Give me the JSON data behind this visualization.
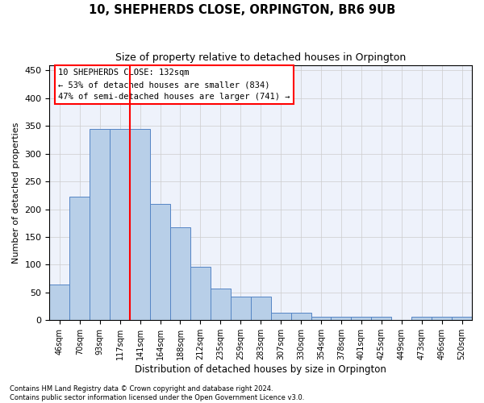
{
  "title": "10, SHEPHERDS CLOSE, ORPINGTON, BR6 9UB",
  "subtitle": "Size of property relative to detached houses in Orpington",
  "xlabel": "Distribution of detached houses by size in Orpington",
  "ylabel": "Number of detached properties",
  "categories": [
    "46sqm",
    "70sqm",
    "93sqm",
    "117sqm",
    "141sqm",
    "164sqm",
    "188sqm",
    "212sqm",
    "235sqm",
    "259sqm",
    "283sqm",
    "307sqm",
    "330sqm",
    "354sqm",
    "378sqm",
    "401sqm",
    "425sqm",
    "449sqm",
    "473sqm",
    "496sqm",
    "520sqm"
  ],
  "values": [
    65,
    222,
    345,
    345,
    345,
    209,
    167,
    97,
    57,
    43,
    43,
    13,
    13,
    7,
    7,
    6,
    6,
    0,
    6,
    6,
    6
  ],
  "bar_color": "#b8cfe8",
  "bar_edge_color": "#5585c5",
  "red_line_x": 3.5,
  "annotation_line1": "10 SHEPHERDS CLOSE: 132sqm",
  "annotation_line2": "← 53% of detached houses are smaller (834)",
  "annotation_line3": "47% of semi-detached houses are larger (741) →",
  "annotation_box_color": "white",
  "annotation_box_edge": "red",
  "grid_color": "#cccccc",
  "background_color": "#eef2fb",
  "ylim": [
    0,
    460
  ],
  "yticks": [
    0,
    50,
    100,
    150,
    200,
    250,
    300,
    350,
    400,
    450
  ],
  "footer1": "Contains HM Land Registry data © Crown copyright and database right 2024.",
  "footer2": "Contains public sector information licensed under the Open Government Licence v3.0."
}
